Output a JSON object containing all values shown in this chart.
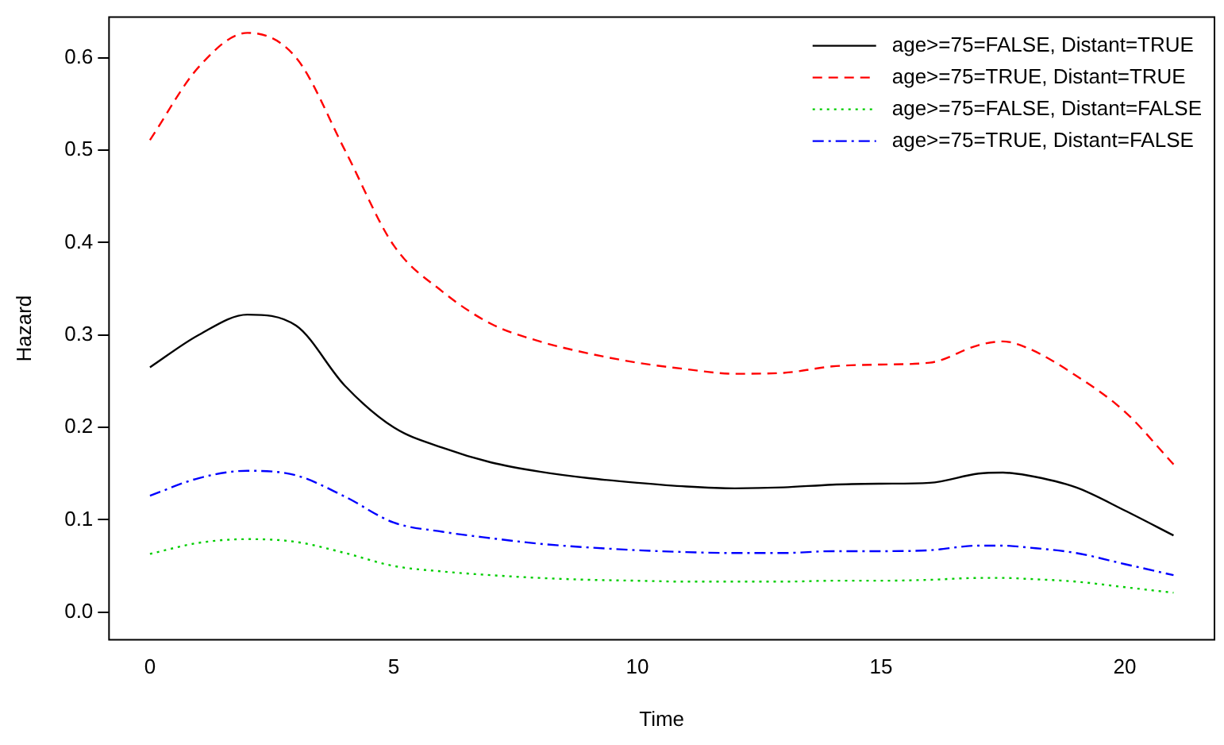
{
  "chart_data": {
    "type": "line",
    "xlabel": "Time",
    "ylabel": "Hazard",
    "x": [
      0,
      1,
      2,
      3,
      4,
      5,
      6,
      7,
      8,
      9,
      10,
      11,
      12,
      13,
      14,
      15,
      16,
      17,
      17.5,
      18,
      19,
      20,
      21
    ],
    "xlim": [
      -0.84,
      21.84
    ],
    "xticks": [
      0,
      5,
      10,
      15,
      20
    ],
    "ylim": [
      -0.03,
      0.644
    ],
    "yticks": [
      {
        "value": 0,
        "label": "0.0"
      },
      0.1,
      0.2,
      0.3,
      0.4,
      0.5,
      0.6
    ],
    "grid": false,
    "legend": "top right",
    "marker": "none",
    "series": [
      {
        "name": "age>=75=FALSE, Distant=TRUE",
        "color": "#000000",
        "line_style": "solid",
        "values": [
          0.265,
          0.3,
          0.322,
          0.31,
          0.245,
          0.2,
          0.178,
          0.162,
          0.152,
          0.145,
          0.14,
          0.136,
          0.134,
          0.135,
          0.138,
          0.139,
          0.14,
          0.15,
          0.151,
          0.148,
          0.135,
          0.11,
          0.083
        ]
      },
      {
        "name": "age>=75=TRUE, Distant=TRUE",
        "color": "#ff0000",
        "line_style": "dashed",
        "values": [
          0.511,
          0.59,
          0.627,
          0.6,
          0.5,
          0.397,
          0.347,
          0.312,
          0.293,
          0.28,
          0.27,
          0.263,
          0.258,
          0.259,
          0.266,
          0.268,
          0.27,
          0.289,
          0.293,
          0.286,
          0.256,
          0.217,
          0.16
        ]
      },
      {
        "name": "age>=75=FALSE, Distant=FALSE",
        "color": "#00cd00",
        "line_style": "dotted",
        "values": [
          0.063,
          0.075,
          0.079,
          0.076,
          0.064,
          0.05,
          0.044,
          0.04,
          0.037,
          0.035,
          0.034,
          0.033,
          0.033,
          0.033,
          0.034,
          0.034,
          0.035,
          0.037,
          0.037,
          0.036,
          0.033,
          0.027,
          0.021
        ]
      },
      {
        "name": "age>=75=TRUE, Distant=FALSE",
        "color": "#0000ff",
        "line_style": "dashdot",
        "values": [
          0.126,
          0.145,
          0.153,
          0.148,
          0.125,
          0.097,
          0.087,
          0.08,
          0.074,
          0.07,
          0.067,
          0.065,
          0.064,
          0.064,
          0.066,
          0.066,
          0.067,
          0.072,
          0.072,
          0.07,
          0.064,
          0.052,
          0.04
        ]
      }
    ]
  }
}
